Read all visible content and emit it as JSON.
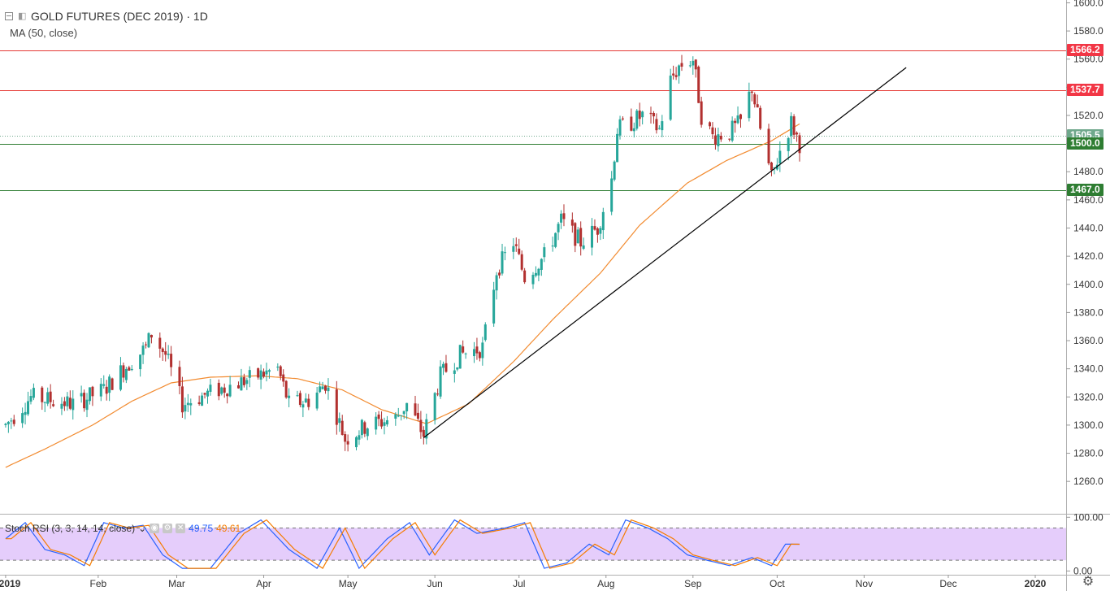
{
  "header": {
    "title": "GOLD FUTURES (DEC 2019) · 1D",
    "indicator": "MA (50, close)"
  },
  "rsi_legend": {
    "label": "Stoch RSI (3, 3, 14, 14, close)",
    "k_value": "49.75",
    "d_value": "49.61",
    "dropdown_icon": "chevron-down-icon",
    "buttons": [
      "eye-icon",
      "gear-icon",
      "close-icon"
    ]
  },
  "price_tags": [
    {
      "label": "1566.2",
      "value": 1566.2,
      "color": "#f23645"
    },
    {
      "label": "1537.7",
      "value": 1537.7,
      "color": "#f23645"
    },
    {
      "label": "1505.5",
      "value": 1505.5,
      "color": "#6fa88c"
    },
    {
      "label": "1500.0",
      "value": 1500.0,
      "color": "#2e7d32"
    },
    {
      "label": "1467.0",
      "value": 1467.0,
      "color": "#2e7d32"
    }
  ],
  "colors": {
    "up": "#26a69a",
    "down": "#b2302f",
    "ma": "#f28b30",
    "resistance": "#e53935",
    "support": "#2e7d32",
    "trendline": "#000000",
    "k_line": "#2962ff",
    "d_line": "#f57c00",
    "rsi_band": "#e1c4fa"
  },
  "chart_data": {
    "type": "candlestick",
    "title": "GOLD FUTURES (DEC 2019) · 1D",
    "y_ticks": [
      1260,
      1280,
      1300,
      1320,
      1340,
      1360,
      1380,
      1400,
      1420,
      1440,
      1460,
      1480,
      1500,
      1520,
      1540,
      1560,
      1580,
      1600
    ],
    "ylim": [
      1237,
      1602
    ],
    "x_tick_labels": [
      "2019",
      "Feb",
      "Mar",
      "Apr",
      "May",
      "Jun",
      "Jul",
      "Aug",
      "Sep",
      "Oct",
      "Nov",
      "Dec",
      "2020"
    ],
    "x_ticks_at_day": [
      0,
      33,
      61,
      92,
      122,
      153,
      183,
      214,
      245,
      275,
      306,
      336,
      367
    ],
    "xlim_days": [
      -2,
      378
    ],
    "horizontal_lines": [
      {
        "value": 1566.2,
        "color": "resistance"
      },
      {
        "value": 1537.7,
        "color": "resistance"
      },
      {
        "value": 1500.0,
        "color": "support"
      },
      {
        "value": 1467.0,
        "color": "support"
      }
    ],
    "trendline": {
      "from": [
        "2019-05-30",
        1291
      ],
      "to": [
        "2019-11-18",
        1554
      ]
    },
    "moving_average_anchors": [
      [
        "2019-01-01",
        1270
      ],
      [
        "2019-01-15",
        1283
      ],
      [
        "2019-02-01",
        1300
      ],
      [
        "2019-02-15",
        1317
      ],
      [
        "2019-03-01",
        1330
      ],
      [
        "2019-03-15",
        1334
      ],
      [
        "2019-04-01",
        1335
      ],
      [
        "2019-04-15",
        1333
      ],
      [
        "2019-05-01",
        1325
      ],
      [
        "2019-05-15",
        1311
      ],
      [
        "2019-05-31",
        1301
      ],
      [
        "2019-06-15",
        1315
      ],
      [
        "2019-07-01",
        1345
      ],
      [
        "2019-07-15",
        1375
      ],
      [
        "2019-08-01",
        1408
      ],
      [
        "2019-08-15",
        1442
      ],
      [
        "2019-09-01",
        1472
      ],
      [
        "2019-09-15",
        1488
      ],
      [
        "2019-10-01",
        1502
      ],
      [
        "2019-10-11",
        1514
      ]
    ],
    "price_anchors": [
      [
        "2019-01-01",
        1300
      ],
      [
        "2019-01-10",
        1320
      ],
      [
        "2019-01-25",
        1315
      ],
      [
        "2019-02-05",
        1325
      ],
      [
        "2019-02-12",
        1340
      ],
      [
        "2019-02-20",
        1355
      ],
      [
        "2019-02-22",
        1365
      ],
      [
        "2019-02-27",
        1350
      ],
      [
        "2019-03-05",
        1315
      ],
      [
        "2019-03-15",
        1323
      ],
      [
        "2019-03-25",
        1330
      ],
      [
        "2019-04-01",
        1335
      ],
      [
        "2019-04-08",
        1340
      ],
      [
        "2019-04-12",
        1315
      ],
      [
        "2019-04-20",
        1318
      ],
      [
        "2019-04-25",
        1330
      ],
      [
        "2019-05-02",
        1290
      ],
      [
        "2019-05-10",
        1300
      ],
      [
        "2019-05-20",
        1305
      ],
      [
        "2019-05-24",
        1315
      ],
      [
        "2019-05-30",
        1293
      ],
      [
        "2019-06-05",
        1335
      ],
      [
        "2019-06-12",
        1350
      ],
      [
        "2019-06-20",
        1355
      ],
      [
        "2019-06-25",
        1410
      ],
      [
        "2019-07-01",
        1430
      ],
      [
        "2019-07-05",
        1405
      ],
      [
        "2019-07-12",
        1420
      ],
      [
        "2019-07-18",
        1445
      ],
      [
        "2019-07-25",
        1430
      ],
      [
        "2019-07-31",
        1440
      ],
      [
        "2019-08-05",
        1475
      ],
      [
        "2019-08-07",
        1510
      ],
      [
        "2019-08-12",
        1515
      ],
      [
        "2019-08-16",
        1520
      ],
      [
        "2019-08-22",
        1510
      ],
      [
        "2019-08-26",
        1545
      ],
      [
        "2019-08-29",
        1555
      ],
      [
        "2019-09-03",
        1560
      ],
      [
        "2019-09-06",
        1520
      ],
      [
        "2019-09-10",
        1505
      ],
      [
        "2019-09-16",
        1508
      ],
      [
        "2019-09-20",
        1515
      ],
      [
        "2019-09-24",
        1540
      ],
      [
        "2019-09-27",
        1510
      ],
      [
        "2019-10-01",
        1475
      ],
      [
        "2019-10-04",
        1495
      ],
      [
        "2019-10-08",
        1515
      ],
      [
        "2019-10-11",
        1500
      ]
    ],
    "stoch_rsi": {
      "y_ticks": [
        0,
        100
      ],
      "ylim": [
        -7,
        105
      ],
      "band": [
        20,
        80
      ],
      "anchors": [
        [
          "2019-01-01",
          60
        ],
        [
          "2019-01-08",
          90
        ],
        [
          "2019-01-15",
          40
        ],
        [
          "2019-01-22",
          30
        ],
        [
          "2019-01-29",
          10
        ],
        [
          "2019-02-05",
          90
        ],
        [
          "2019-02-12",
          80
        ],
        [
          "2019-02-19",
          85
        ],
        [
          "2019-02-26",
          30
        ],
        [
          "2019-03-05",
          5
        ],
        [
          "2019-03-15",
          5
        ],
        [
          "2019-03-25",
          70
        ],
        [
          "2019-04-02",
          95
        ],
        [
          "2019-04-12",
          40
        ],
        [
          "2019-04-22",
          5
        ],
        [
          "2019-04-30",
          80
        ],
        [
          "2019-05-07",
          5
        ],
        [
          "2019-05-17",
          60
        ],
        [
          "2019-05-25",
          90
        ],
        [
          "2019-06-01",
          30
        ],
        [
          "2019-06-10",
          95
        ],
        [
          "2019-06-18",
          70
        ],
        [
          "2019-06-28",
          80
        ],
        [
          "2019-07-05",
          90
        ],
        [
          "2019-07-12",
          5
        ],
        [
          "2019-07-20",
          15
        ],
        [
          "2019-07-28",
          50
        ],
        [
          "2019-08-04",
          30
        ],
        [
          "2019-08-10",
          95
        ],
        [
          "2019-08-18",
          80
        ],
        [
          "2019-08-25",
          60
        ],
        [
          "2019-09-01",
          30
        ],
        [
          "2019-09-08",
          20
        ],
        [
          "2019-09-16",
          10
        ],
        [
          "2019-09-24",
          25
        ],
        [
          "2019-10-01",
          10
        ],
        [
          "2019-10-06",
          50
        ],
        [
          "2019-10-11",
          49.7
        ]
      ]
    }
  }
}
